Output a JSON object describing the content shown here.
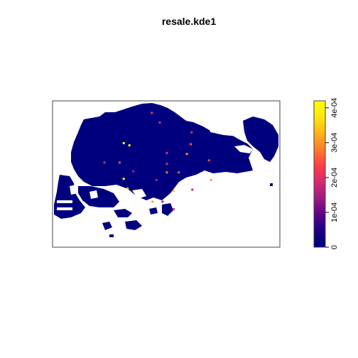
{
  "chart_data": {
    "type": "heatmap",
    "title": "resale.kde1",
    "xlabel": "",
    "ylabel": "",
    "colorbar": {
      "min": 0,
      "max": 0.00042,
      "ticks": [
        {
          "value": 0,
          "label": "0"
        },
        {
          "value": 0.0001,
          "label": "1e-04"
        },
        {
          "value": 0.0002,
          "label": "2e-04"
        },
        {
          "value": 0.0003,
          "label": "3e-04"
        },
        {
          "value": 0.0004,
          "label": "4e-04"
        }
      ],
      "colors": [
        "#00007f",
        "#1a0080",
        "#5c0088",
        "#9b1a86",
        "#d62a6e",
        "#ff3a4a",
        "#ff7a2a",
        "#ffb21a",
        "#ffe60f",
        "#ffff00"
      ]
    },
    "background_value": 0,
    "background_color": "#00007f",
    "hotspots": [
      {
        "x": 0.437,
        "y": 0.918,
        "value": 0.00022
      },
      {
        "x": 0.472,
        "y": 0.851,
        "value": 0.0002
      },
      {
        "x": 0.612,
        "y": 0.785,
        "value": 0.0002
      },
      {
        "x": 0.608,
        "y": 0.704,
        "value": 0.00025
      },
      {
        "x": 0.313,
        "y": 0.711,
        "value": 0.00042
      },
      {
        "x": 0.338,
        "y": 0.696,
        "value": 0.00038
      },
      {
        "x": 0.591,
        "y": 0.637,
        "value": 0.0003
      },
      {
        "x": 0.503,
        "y": 0.644,
        "value": 0.00021
      },
      {
        "x": 0.228,
        "y": 0.578,
        "value": 0.00019
      },
      {
        "x": 0.295,
        "y": 0.578,
        "value": 0.00025
      },
      {
        "x": 0.503,
        "y": 0.57,
        "value": 0.00019
      },
      {
        "x": 0.688,
        "y": 0.593,
        "value": 0.00024
      },
      {
        "x": 0.355,
        "y": 0.519,
        "value": 0.00016
      },
      {
        "x": 0.503,
        "y": 0.511,
        "value": 0.00028
      },
      {
        "x": 0.555,
        "y": 0.511,
        "value": 0.00026
      },
      {
        "x": 0.313,
        "y": 0.467,
        "value": 0.00041
      },
      {
        "x": 0.457,
        "y": 0.459,
        "value": 0.00017
      },
      {
        "x": 0.697,
        "y": 0.459,
        "value": 0.00031
      },
      {
        "x": 0.33,
        "y": 0.4,
        "value": 0.00036
      },
      {
        "x": 0.533,
        "y": 0.385,
        "value": 0.00034
      },
      {
        "x": 0.615,
        "y": 0.393,
        "value": 0.00018
      },
      {
        "x": 0.44,
        "y": 0.311,
        "value": 0.00031
      },
      {
        "x": 0.533,
        "y": 0.259,
        "value": 0.00021
      },
      {
        "x": 0.484,
        "y": 0.311,
        "value": 0.00016
      }
    ]
  }
}
